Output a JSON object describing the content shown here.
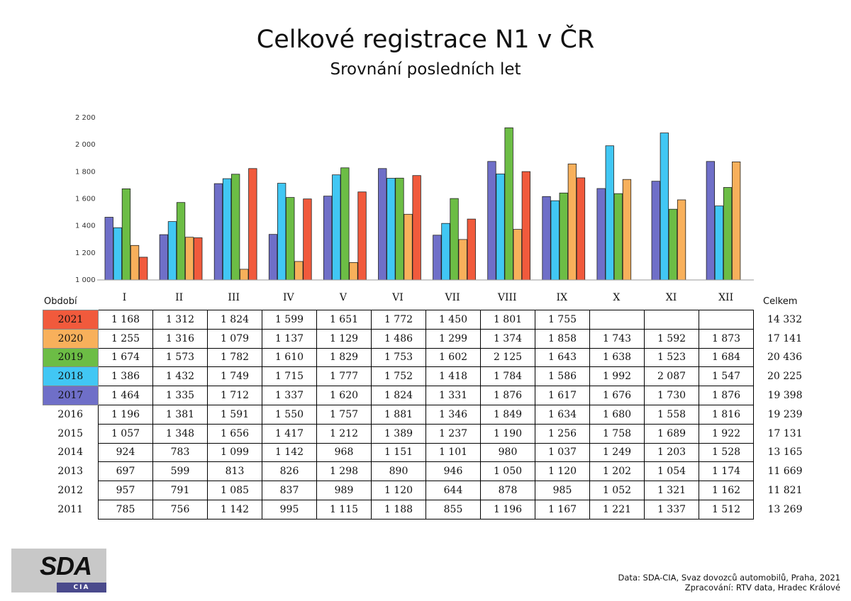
{
  "title": "Celkové registrace N1 v ČR",
  "subtitle": "Srovnání posledních let",
  "table": {
    "period_label": "Období",
    "total_label": "Celkem"
  },
  "chart_data": {
    "type": "bar",
    "title": "Celkové registrace N1 v ČR",
    "subtitle": "Srovnání posledních let",
    "categories": [
      "I",
      "II",
      "III",
      "IV",
      "V",
      "VI",
      "VII",
      "VIII",
      "IX",
      "X",
      "XI",
      "XII"
    ],
    "ylim": [
      1000,
      2200
    ],
    "yticks": [
      "1 000",
      "1 200",
      "1 400",
      "1 600",
      "1 800",
      "2 000",
      "2 200"
    ],
    "ytick_values": [
      1000,
      1200,
      1400,
      1600,
      1800,
      2000,
      2200
    ],
    "grid": false,
    "series": [
      {
        "name": "2017",
        "color": "#6f6fc8",
        "values": [
          1464,
          1335,
          1712,
          1337,
          1620,
          1824,
          1331,
          1876,
          1617,
          1676,
          1730,
          1876
        ]
      },
      {
        "name": "2018",
        "color": "#41c7f4",
        "values": [
          1386,
          1432,
          1749,
          1715,
          1777,
          1752,
          1418,
          1784,
          1586,
          1992,
          2087,
          1547
        ]
      },
      {
        "name": "2019",
        "color": "#6cbd45",
        "values": [
          1674,
          1573,
          1782,
          1610,
          1829,
          1753,
          1602,
          2125,
          1643,
          1638,
          1523,
          1684
        ]
      },
      {
        "name": "2020",
        "color": "#f8b05b",
        "values": [
          1255,
          1316,
          1079,
          1137,
          1129,
          1486,
          1299,
          1374,
          1858,
          1743,
          1592,
          1873
        ]
      },
      {
        "name": "2021",
        "color": "#f15a3c",
        "values": [
          1168,
          1312,
          1824,
          1599,
          1651,
          1772,
          1450,
          1801,
          1755,
          null,
          null,
          null
        ]
      }
    ]
  },
  "rows": [
    {
      "year": "2021",
      "color": "#f15a3c",
      "values": [
        "1 168",
        "1 312",
        "1 824",
        "1 599",
        "1 651",
        "1 772",
        "1 450",
        "1 801",
        "1 755",
        "",
        "",
        ""
      ],
      "total": "14 332"
    },
    {
      "year": "2020",
      "color": "#f8b05b",
      "values": [
        "1 255",
        "1 316",
        "1 079",
        "1 137",
        "1 129",
        "1 486",
        "1 299",
        "1 374",
        "1 858",
        "1 743",
        "1 592",
        "1 873"
      ],
      "total": "17 141"
    },
    {
      "year": "2019",
      "color": "#6cbd45",
      "values": [
        "1 674",
        "1 573",
        "1 782",
        "1 610",
        "1 829",
        "1 753",
        "1 602",
        "2 125",
        "1 643",
        "1 638",
        "1 523",
        "1 684"
      ],
      "total": "20 436"
    },
    {
      "year": "2018",
      "color": "#41c7f4",
      "values": [
        "1 386",
        "1 432",
        "1 749",
        "1 715",
        "1 777",
        "1 752",
        "1 418",
        "1 784",
        "1 586",
        "1 992",
        "2 087",
        "1 547"
      ],
      "total": "20 225"
    },
    {
      "year": "2017",
      "color": "#6f6fc8",
      "values": [
        "1 464",
        "1 335",
        "1 712",
        "1 337",
        "1 620",
        "1 824",
        "1 331",
        "1 876",
        "1 617",
        "1 676",
        "1 730",
        "1 876"
      ],
      "total": "19 398"
    },
    {
      "year": "2016",
      "color": "",
      "values": [
        "1 196",
        "1 381",
        "1 591",
        "1 550",
        "1 757",
        "1 881",
        "1 346",
        "1 849",
        "1 634",
        "1 680",
        "1 558",
        "1 816"
      ],
      "total": "19 239"
    },
    {
      "year": "2015",
      "color": "",
      "values": [
        "1 057",
        "1 348",
        "1 656",
        "1 417",
        "1 212",
        "1 389",
        "1 237",
        "1 190",
        "1 256",
        "1 758",
        "1 689",
        "1 922"
      ],
      "total": "17 131"
    },
    {
      "year": "2014",
      "color": "",
      "values": [
        "924",
        "783",
        "1 099",
        "1 142",
        "968",
        "1 151",
        "1 101",
        "980",
        "1 037",
        "1 249",
        "1 203",
        "1 528"
      ],
      "total": "13 165"
    },
    {
      "year": "2013",
      "color": "",
      "values": [
        "697",
        "599",
        "813",
        "826",
        "1 298",
        "890",
        "946",
        "1 050",
        "1 120",
        "1 202",
        "1 054",
        "1 174"
      ],
      "total": "11 669"
    },
    {
      "year": "2012",
      "color": "",
      "values": [
        "957",
        "791",
        "1 085",
        "837",
        "989",
        "1 120",
        "644",
        "878",
        "985",
        "1 052",
        "1 321",
        "1 162"
      ],
      "total": "11 821"
    },
    {
      "year": "2011",
      "color": "",
      "values": [
        "785",
        "756",
        "1 142",
        "995",
        "1 115",
        "1 188",
        "855",
        "1 196",
        "1 167",
        "1 221",
        "1 337",
        "1 512"
      ],
      "total": "13 269"
    }
  ],
  "logo": {
    "main": "SDA",
    "sub": "CIA"
  },
  "source": {
    "line1": "Data: SDA-CIA, Svaz dovozců automobilů, Praha, 2021",
    "line2": "Zpracování: RTV data, Hradec Králové"
  }
}
